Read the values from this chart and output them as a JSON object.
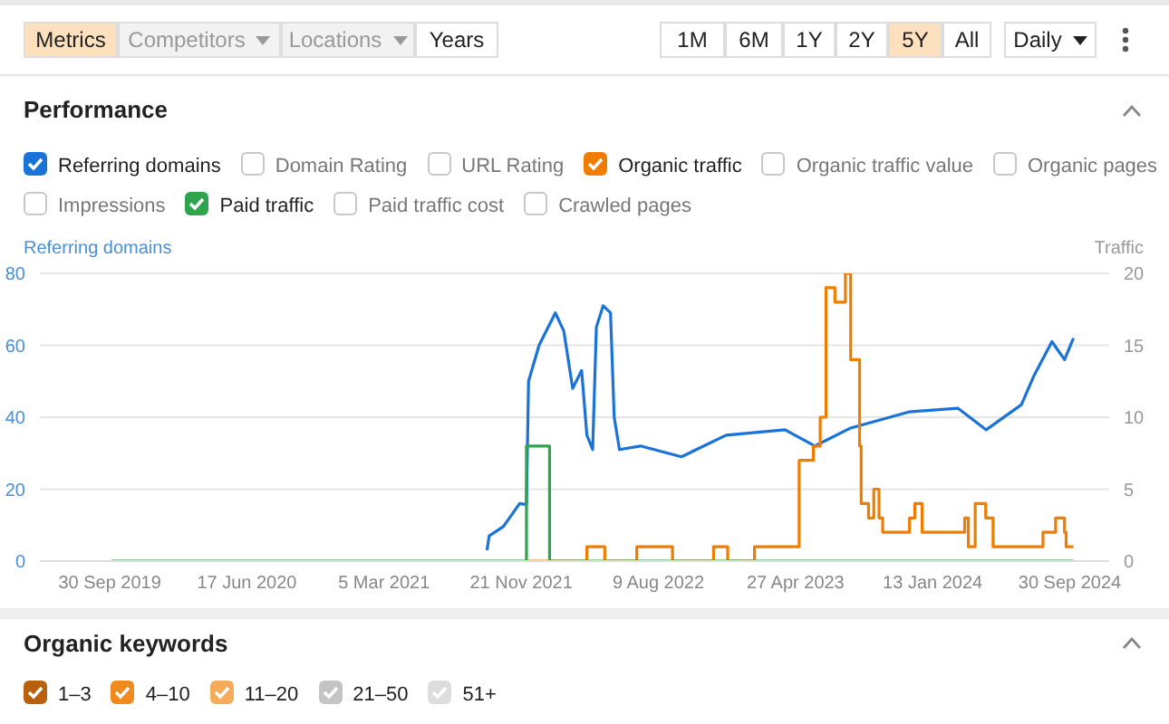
{
  "chart_data": {
    "type": "line",
    "title": "Performance",
    "ylabel": "Referring domains",
    "y2label": "Traffic",
    "legend": "top",
    "grid": "y",
    "xlim": [
      "2019-05-20",
      "2024-12-14"
    ],
    "xticks": [
      {
        "value": "2019-09-30",
        "label": "30 Sep 2019"
      },
      {
        "value": "2020-06-17",
        "label": "17 Jun 2020"
      },
      {
        "value": "2021-03-05",
        "label": "5 Mar 2021"
      },
      {
        "value": "2021-11-21",
        "label": "21 Nov 2021"
      },
      {
        "value": "2022-08-09",
        "label": "9 Aug 2022"
      },
      {
        "value": "2023-04-27",
        "label": "27 Apr 2023"
      },
      {
        "value": "2024-01-13",
        "label": "13 Jan 2024"
      },
      {
        "value": "2024-09-30",
        "label": "30 Sep 2024"
      }
    ],
    "ylim": [
      0,
      80
    ],
    "yticks": [
      0,
      20,
      40,
      60,
      80
    ],
    "y2lim": [
      0,
      20
    ],
    "y2ticks": [
      0,
      5,
      10,
      15,
      20
    ],
    "series": [
      {
        "name": "Referring domains",
        "color": "#1a73d9",
        "x": [
          "2021-09-17",
          "2021-09-21",
          "2021-10-18",
          "2021-11-18",
          "2021-12-01",
          "2021-12-05",
          "2021-12-25",
          "2022-01-25",
          "2022-02-10",
          "2022-02-27",
          "2022-03-16",
          "2022-03-26",
          "2022-04-06",
          "2022-04-13",
          "2022-04-26",
          "2022-05-10",
          "2022-05-17",
          "2022-05-27",
          "2022-07-06",
          "2022-09-22",
          "2022-12-16",
          "2023-04-07",
          "2023-06-03",
          "2023-08-10",
          "2023-11-30",
          "2024-03-01",
          "2024-04-24",
          "2024-06-30",
          "2024-07-24",
          "2024-08-27",
          "2024-09-20",
          "2024-10-07"
        ],
        "values": [
          3,
          7,
          9.6,
          16,
          15.7,
          50,
          60,
          69,
          64,
          48,
          53,
          35,
          31,
          65,
          71,
          69,
          40,
          31,
          32,
          29,
          35,
          36.5,
          32,
          37,
          41.5,
          42.5,
          36.5,
          43.5,
          51.6,
          61,
          56,
          62
        ]
      },
      {
        "name": "Organic traffic",
        "type": "step",
        "axis": "y2",
        "color": "#f07d00",
        "x": [
          "2021-11-28",
          "2022-03-26",
          "2022-04-29",
          "2022-06-29",
          "2022-09-05",
          "2022-11-22",
          "2022-12-19",
          "2023-02-08",
          "2023-05-04",
          "2023-05-31",
          "2023-06-13",
          "2023-06-24",
          "2023-07-11",
          "2023-07-31",
          "2023-08-10",
          "2023-08-27",
          "2023-08-30",
          "2023-09-13",
          "2023-09-23",
          "2023-10-03",
          "2023-10-10",
          "2023-11-30",
          "2023-12-10",
          "2023-12-24",
          "2024-03-14",
          "2024-03-21",
          "2024-04-03",
          "2024-04-23",
          "2024-05-07",
          "2024-08-10",
          "2024-09-03",
          "2024-09-20",
          "2024-09-23",
          "2024-10-07"
        ],
        "values": [
          0,
          1,
          0,
          1,
          0,
          1,
          0,
          1,
          7,
          8,
          10,
          19,
          18,
          20,
          14,
          8,
          4,
          3,
          5,
          3,
          2,
          3,
          4,
          2,
          3,
          1,
          4,
          3,
          1,
          2,
          3,
          2,
          1,
          1
        ]
      },
      {
        "name": "Paid traffic",
        "type": "step",
        "axis": "y2",
        "color": "#2ea44f",
        "x": [
          "2019-10-03",
          "2021-12-01",
          "2022-01-14",
          "2024-10-07"
        ],
        "values": [
          0,
          8,
          0,
          0
        ]
      }
    ],
    "annotations": [
      "Metrics",
      "Competitors",
      "Locations",
      "Years",
      "1M",
      "6M",
      "1Y",
      "2Y",
      "5Y",
      "All",
      "Daily",
      "Domain Rating",
      "URL Rating",
      "Organic traffic value",
      "Organic pages",
      "Impressions",
      "Paid traffic cost",
      "Crawled pages",
      "Organic keywords",
      "1–3",
      "4–10",
      "11–20",
      "21–50",
      "51+"
    ]
  }
}
